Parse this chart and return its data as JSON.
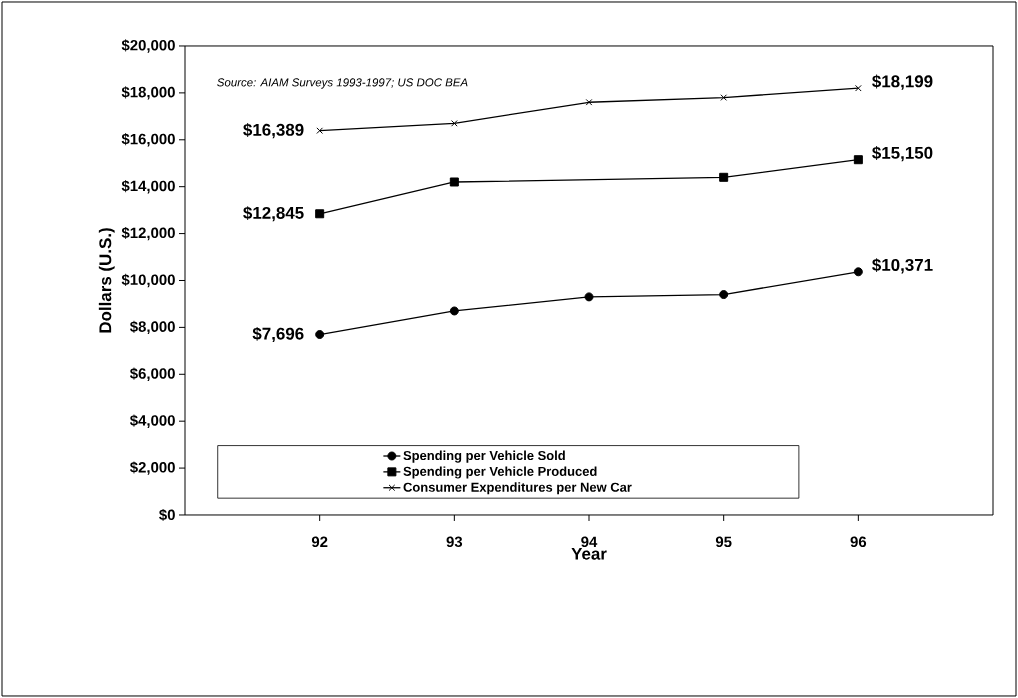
{
  "chart_data": {
    "type": "line",
    "xlabel": "Year",
    "ylabel": "Dollars (U.S.)",
    "annotations": [
      "Source: AIAM Surveys 1993-1997; US DOC BEA"
    ],
    "categories": [
      "92",
      "93",
      "94",
      "95",
      "96"
    ],
    "series": [
      {
        "name": "Spending per Vehicle Sold",
        "color": "#000000",
        "marker": "circle",
        "values": [
          7696,
          8700,
          9300,
          9400,
          10371
        ],
        "value_labels": [
          "$7,696",
          null,
          null,
          null,
          "$10,371"
        ]
      },
      {
        "name": "Spending per Vehicle Produced",
        "color": "#000000",
        "marker": "square",
        "values": [
          12845,
          14200,
          null,
          14400,
          15150
        ],
        "value_labels": [
          "$12,845",
          null,
          null,
          null,
          "$15,150"
        ]
      },
      {
        "name": "Consumer Expenditures per New Car",
        "color": "#000000",
        "marker": "cross",
        "values": [
          16389,
          16700,
          17600,
          17800,
          18199
        ],
        "value_labels": [
          "$16,389",
          null,
          null,
          null,
          "$18,199"
        ]
      }
    ],
    "ylim": [
      0,
      20000
    ],
    "yticks": [
      {
        "value": 0,
        "label": "$0"
      },
      {
        "value": 2000,
        "label": "$2,000"
      },
      {
        "value": 4000,
        "label": "$4,000"
      },
      {
        "value": 6000,
        "label": "$6,000"
      },
      {
        "value": 8000,
        "label": "$8,000"
      },
      {
        "value": 10000,
        "label": "$10,000"
      },
      {
        "value": 12000,
        "label": "$12,000"
      },
      {
        "value": 14000,
        "label": "$14,000"
      },
      {
        "value": 16000,
        "label": "$16,000"
      },
      {
        "value": 18000,
        "label": "$18,000"
      },
      {
        "value": 20000,
        "label": "$20,000"
      }
    ],
    "legend": "bottom",
    "line_style": "solid"
  }
}
